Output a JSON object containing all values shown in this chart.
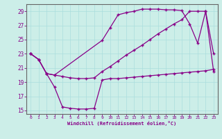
{
  "xlabel": "Windchill (Refroidissement éolien,°C)",
  "bg_color": "#cceee8",
  "line_color": "#880088",
  "grid_color": "#aadddd",
  "xlim": [
    -0.5,
    23.5
  ],
  "ylim": [
    14.5,
    30.0
  ],
  "yticks": [
    15,
    17,
    19,
    21,
    23,
    25,
    27,
    29
  ],
  "xticks": [
    0,
    1,
    2,
    3,
    4,
    5,
    6,
    7,
    8,
    9,
    10,
    11,
    12,
    13,
    14,
    15,
    16,
    17,
    18,
    19,
    20,
    21,
    22,
    23
  ],
  "series1_x": [
    0,
    1,
    2,
    3,
    4,
    5,
    6,
    7,
    8,
    9,
    10,
    11,
    12,
    13,
    14,
    15,
    16,
    17,
    18,
    19,
    20,
    21,
    22,
    23
  ],
  "series1_y": [
    23.0,
    22.2,
    20.2,
    20.0,
    19.8,
    19.6,
    19.5,
    19.5,
    19.6,
    20.5,
    21.2,
    22.0,
    22.8,
    23.5,
    24.2,
    25.0,
    25.8,
    26.5,
    27.2,
    27.8,
    29.0,
    29.0,
    29.0,
    23.0
  ],
  "series2_x": [
    0,
    1,
    2,
    3,
    4,
    5,
    6,
    7,
    8,
    9,
    10,
    11,
    12,
    13,
    14,
    15,
    16,
    17,
    18,
    19,
    20,
    21,
    22,
    23
  ],
  "series2_y": [
    23.0,
    22.2,
    20.2,
    18.3,
    15.5,
    15.3,
    15.2,
    15.2,
    15.3,
    19.3,
    19.5,
    19.5,
    19.6,
    19.7,
    19.8,
    19.9,
    20.0,
    20.1,
    20.2,
    20.3,
    20.4,
    20.5,
    20.6,
    20.8
  ],
  "series3_x": [
    0,
    1,
    2,
    3,
    9,
    10,
    11,
    12,
    13,
    14,
    15,
    16,
    17,
    18,
    19,
    20,
    21,
    22,
    23
  ],
  "series3_y": [
    23.0,
    22.2,
    20.2,
    20.0,
    24.9,
    26.7,
    28.5,
    28.8,
    29.0,
    29.3,
    29.3,
    29.3,
    29.2,
    29.2,
    29.1,
    27.2,
    24.5,
    29.0,
    20.5
  ]
}
